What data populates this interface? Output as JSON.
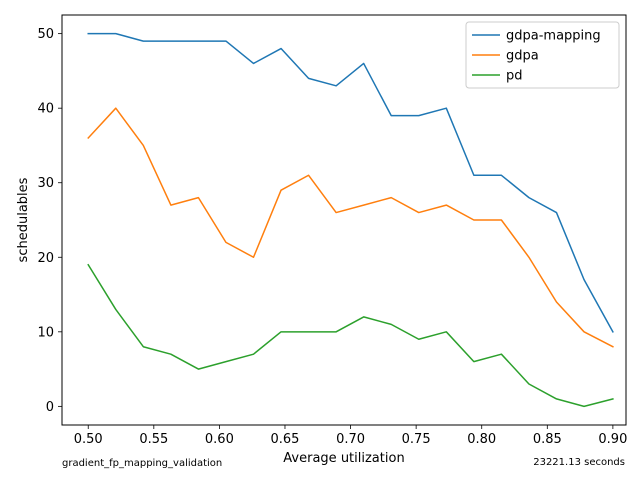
{
  "chart_data": {
    "type": "line",
    "xlabel": "Average utilization",
    "ylabel": "schedulables",
    "xlim": [
      0.48,
      0.91
    ],
    "ylim": [
      -2.5,
      52.5
    ],
    "xticks": [
      0.5,
      0.55,
      0.6,
      0.65,
      0.7,
      0.75,
      0.8,
      0.85,
      0.9
    ],
    "xtick_labels": [
      "0.50",
      "0.55",
      "0.60",
      "0.65",
      "0.70",
      "0.75",
      "0.80",
      "0.85",
      "0.90"
    ],
    "yticks": [
      0,
      10,
      20,
      30,
      40,
      50
    ],
    "ytick_labels": [
      "0",
      "10",
      "20",
      "30",
      "40",
      "50"
    ],
    "grid": false,
    "legend": "top-right",
    "x": [
      0.5,
      0.521,
      0.542,
      0.563,
      0.584,
      0.605,
      0.626,
      0.647,
      0.668,
      0.689,
      0.71,
      0.731,
      0.752,
      0.773,
      0.794,
      0.815,
      0.836,
      0.857,
      0.878,
      0.9
    ],
    "series": [
      {
        "name": "gdpa-mapping",
        "color": "#1f77b4",
        "values": [
          50,
          50,
          49,
          49,
          49,
          49,
          46,
          48,
          44,
          43,
          46,
          39,
          39,
          40,
          31,
          31,
          28,
          26,
          17,
          10
        ]
      },
      {
        "name": "gdpa",
        "color": "#ff7f0e",
        "values": [
          36,
          40,
          35,
          27,
          28,
          22,
          20,
          29,
          31,
          26,
          27,
          28,
          26,
          27,
          25,
          25,
          20,
          14,
          10,
          8
        ]
      },
      {
        "name": "pd",
        "color": "#2ca02c",
        "values": [
          19,
          13,
          8,
          7,
          5,
          6,
          7,
          10,
          10,
          10,
          12,
          11,
          9,
          10,
          6,
          7,
          3,
          1,
          0,
          1
        ]
      }
    ]
  },
  "footer": {
    "left": "gradient_fp_mapping_validation",
    "right": "23221.13 seconds"
  }
}
